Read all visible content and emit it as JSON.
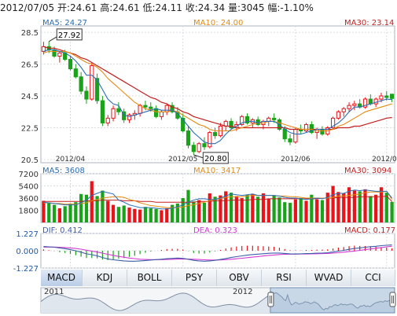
{
  "header": {
    "date": "2012/07/05",
    "open_label": "开:",
    "open": "24.61",
    "high_label": "高:",
    "high": "24.61",
    "low_label": "低:",
    "low": "24.11",
    "close_label": "收:",
    "close": "24.34",
    "volume_label": "量:",
    "volume": "3045",
    "change_label": "幅:",
    "change": "-1.10%"
  },
  "colors": {
    "up": "#e8141a",
    "down": "#1aa31a",
    "ma5": "#2a6db5",
    "ma10": "#e38a10",
    "ma30": "#c41e1e",
    "dif": "#3c5ea8",
    "dea": "#d23ad2",
    "grid": "#d9dde3"
  },
  "chart_data": [
    {
      "type": "candlestick",
      "name": "price",
      "legend": {
        "ma5": "MA5: 24.27",
        "ma10": "MA10: 24.00",
        "ma30": "MA30: 23.14"
      },
      "y_ticks": [
        "28.5",
        "26.5",
        "24.5",
        "22.5",
        "20.5"
      ],
      "ylim": [
        20.3,
        28.9
      ],
      "x_ticks": [
        "2012/04",
        "2012/05",
        "2012/06",
        "2012/07"
      ],
      "annotations": {
        "max": "27.92",
        "min": "20.80"
      },
      "candles": [
        [
          27.3,
          27.9,
          27.1,
          27.6
        ],
        [
          27.6,
          27.92,
          27.2,
          27.4
        ],
        [
          27.4,
          27.6,
          26.9,
          27.0
        ],
        [
          27.0,
          27.3,
          26.6,
          27.2
        ],
        [
          27.2,
          27.4,
          26.7,
          26.8
        ],
        [
          26.8,
          27.0,
          26.1,
          26.2
        ],
        [
          26.2,
          26.5,
          25.6,
          25.7
        ],
        [
          25.7,
          26.0,
          24.6,
          24.8
        ],
        [
          24.8,
          25.1,
          24.0,
          24.3
        ],
        [
          24.3,
          26.6,
          24.2,
          26.4
        ],
        [
          25.6,
          25.9,
          24.0,
          24.2
        ],
        [
          24.2,
          24.5,
          22.6,
          22.8
        ],
        [
          22.8,
          23.3,
          22.6,
          23.1
        ],
        [
          23.1,
          23.9,
          22.9,
          23.7
        ],
        [
          23.7,
          24.1,
          23.3,
          23.5
        ],
        [
          23.5,
          23.7,
          22.8,
          23.0
        ],
        [
          23.0,
          23.4,
          22.8,
          23.3
        ],
        [
          23.3,
          23.6,
          23.0,
          23.4
        ],
        [
          23.4,
          24.0,
          23.2,
          23.9
        ],
        [
          23.9,
          24.2,
          23.6,
          23.8
        ],
        [
          23.8,
          24.1,
          23.5,
          23.7
        ],
        [
          23.7,
          23.9,
          23.1,
          23.2
        ],
        [
          23.2,
          23.6,
          23.0,
          23.5
        ],
        [
          23.5,
          24.0,
          23.3,
          23.9
        ],
        [
          23.9,
          24.1,
          23.4,
          23.5
        ],
        [
          23.5,
          23.8,
          23.0,
          23.1
        ],
        [
          23.1,
          23.4,
          22.2,
          22.3
        ],
        [
          22.3,
          22.6,
          21.2,
          21.4
        ],
        [
          21.4,
          21.6,
          20.8,
          21.0
        ],
        [
          21.0,
          21.6,
          20.9,
          21.5
        ],
        [
          21.5,
          21.9,
          21.1,
          21.3
        ],
        [
          21.3,
          22.3,
          21.2,
          22.2
        ],
        [
          22.2,
          22.5,
          21.8,
          22.0
        ],
        [
          22.0,
          22.8,
          21.9,
          22.6
        ],
        [
          22.6,
          23.0,
          22.3,
          22.9
        ],
        [
          22.9,
          23.1,
          22.4,
          22.5
        ],
        [
          22.5,
          22.9,
          22.3,
          22.7
        ],
        [
          22.7,
          23.3,
          22.6,
          23.2
        ],
        [
          23.2,
          23.4,
          22.7,
          22.8
        ],
        [
          22.8,
          23.1,
          22.5,
          23.0
        ],
        [
          23.0,
          23.2,
          22.6,
          22.7
        ],
        [
          22.7,
          23.0,
          22.4,
          22.9
        ],
        [
          22.9,
          23.2,
          22.6,
          23.1
        ],
        [
          23.1,
          23.4,
          22.8,
          23.0
        ],
        [
          23.0,
          23.1,
          22.3,
          22.4
        ],
        [
          22.4,
          22.6,
          21.6,
          21.8
        ],
        [
          21.8,
          22.1,
          21.4,
          21.6
        ],
        [
          21.6,
          22.5,
          21.5,
          22.4
        ],
        [
          22.4,
          22.7,
          22.1,
          22.3
        ],
        [
          22.3,
          22.8,
          22.2,
          22.7
        ],
        [
          22.7,
          22.9,
          22.1,
          22.2
        ],
        [
          22.2,
          22.5,
          21.8,
          22.4
        ],
        [
          22.4,
          22.6,
          22.0,
          22.1
        ],
        [
          22.1,
          22.6,
          22.0,
          22.5
        ],
        [
          22.5,
          23.2,
          22.4,
          23.1
        ],
        [
          23.1,
          23.6,
          23.0,
          23.5
        ],
        [
          23.5,
          23.8,
          23.2,
          23.7
        ],
        [
          23.7,
          24.1,
          23.5,
          23.9
        ],
        [
          23.9,
          24.2,
          23.6,
          24.0
        ],
        [
          24.0,
          24.3,
          23.7,
          23.8
        ],
        [
          23.8,
          24.4,
          23.7,
          24.3
        ],
        [
          24.3,
          24.6,
          23.9,
          24.0
        ],
        [
          24.0,
          24.4,
          23.8,
          24.3
        ],
        [
          24.3,
          24.7,
          24.1,
          24.5
        ],
        [
          24.5,
          24.8,
          24.2,
          24.4
        ],
        [
          24.61,
          24.61,
          24.11,
          24.34
        ]
      ],
      "ma5": [
        27.3,
        27.4,
        27.4,
        27.3,
        27.2,
        27.0,
        26.7,
        26.3,
        25.8,
        25.8,
        25.5,
        24.9,
        24.3,
        24.0,
        23.9,
        23.3,
        23.2,
        23.3,
        23.4,
        23.5,
        23.6,
        23.7,
        23.6,
        23.6,
        23.6,
        23.4,
        23.0,
        22.6,
        22.2,
        21.9,
        21.6,
        21.5,
        21.5,
        21.7,
        22.1,
        22.4,
        22.6,
        22.8,
        22.9,
        22.9,
        22.8,
        22.9,
        22.9,
        22.9,
        22.7,
        22.4,
        22.2,
        22.1,
        22.1,
        22.2,
        22.3,
        22.4,
        22.4,
        22.4,
        22.6,
        22.8,
        23.1,
        23.5,
        23.8,
        23.8,
        23.9,
        24.0,
        24.1,
        24.2,
        24.3,
        24.27
      ],
      "ma10": [
        27.2,
        27.3,
        27.3,
        27.3,
        27.3,
        27.2,
        27.0,
        26.8,
        26.6,
        26.5,
        26.3,
        26.0,
        25.6,
        25.3,
        25.0,
        24.7,
        24.4,
        24.1,
        23.9,
        23.7,
        23.6,
        23.5,
        23.5,
        23.5,
        23.6,
        23.5,
        23.3,
        23.1,
        22.9,
        22.7,
        22.6,
        22.4,
        22.3,
        22.3,
        22.3,
        22.3,
        22.4,
        22.5,
        22.6,
        22.7,
        22.8,
        22.8,
        22.9,
        22.9,
        22.8,
        22.7,
        22.6,
        22.5,
        22.4,
        22.4,
        22.4,
        22.3,
        22.3,
        22.3,
        22.4,
        22.6,
        22.7,
        22.9,
        23.1,
        23.3,
        23.5,
        23.6,
        23.7,
        23.8,
        23.9,
        24.0
      ],
      "ma30": [
        27.6,
        27.5,
        27.5,
        27.4,
        27.3,
        27.2,
        27.1,
        26.9,
        26.8,
        26.6,
        26.4,
        26.2,
        26.0,
        25.8,
        25.6,
        25.4,
        25.2,
        25.0,
        24.8,
        24.6,
        24.4,
        24.3,
        24.1,
        24.0,
        23.8,
        23.7,
        23.5,
        23.4,
        23.2,
        23.1,
        23.0,
        22.9,
        22.8,
        22.7,
        22.6,
        22.6,
        22.5,
        22.5,
        22.5,
        22.5,
        22.5,
        22.5,
        22.5,
        22.5,
        22.5,
        22.5,
        22.4,
        22.4,
        22.4,
        22.4,
        22.4,
        22.4,
        22.4,
        22.4,
        22.4,
        22.5,
        22.5,
        22.5,
        22.6,
        22.6,
        22.7,
        22.8,
        22.9,
        23.0,
        23.1,
        23.14
      ]
    },
    {
      "type": "bar",
      "name": "volume",
      "legend": {
        "ma5": "MA5: 3608",
        "ma10": "MA10: 3417",
        "ma30": "MA30: 3094"
      },
      "y_ticks": [
        "7200",
        "5400",
        "3600",
        "1800"
      ],
      "ylim": [
        0,
        7200
      ],
      "values": [
        3200,
        2900,
        2600,
        2100,
        2400,
        2800,
        3000,
        4200,
        4100,
        6100,
        3900,
        4700,
        3200,
        2600,
        2300,
        2500,
        2200,
        2000,
        1900,
        2300,
        2100,
        2000,
        1800,
        2100,
        2600,
        2800,
        3600,
        4800,
        3100,
        3300,
        2900,
        4300,
        3800,
        4000,
        4600,
        4400,
        3900,
        3600,
        4100,
        4200,
        3800,
        4300,
        3500,
        4000,
        3700,
        3000,
        2900,
        3400,
        3600,
        3200,
        4100,
        3400,
        3300,
        4400,
        5400,
        4500,
        4300,
        5200,
        4700,
        4600,
        4900,
        3900,
        4100,
        5200,
        4400,
        3045
      ],
      "ma5": [
        3000,
        2900,
        2800,
        2700,
        2600,
        2600,
        2600,
        2900,
        3300,
        4000,
        4300,
        4600,
        4400,
        4200,
        3300,
        3000,
        2600,
        2400,
        2200,
        2200,
        2200,
        2100,
        2000,
        2000,
        2100,
        2300,
        2600,
        3000,
        3300,
        3500,
        3500,
        3400,
        3400,
        3600,
        3900,
        4200,
        4100,
        4000,
        4100,
        4200,
        4000,
        4000,
        4000,
        4000,
        3900,
        3700,
        3600,
        3600,
        3500,
        3400,
        3500,
        3600,
        3500,
        3700,
        4100,
        4300,
        4300,
        4600,
        4800,
        4700,
        4800,
        4700,
        4600,
        4600,
        4600,
        3608
      ],
      "ma10": [
        2900,
        2900,
        2800,
        2800,
        2700,
        2700,
        2700,
        2800,
        2900,
        3200,
        3400,
        3600,
        3700,
        3800,
        3800,
        3700,
        3400,
        3200,
        2900,
        2700,
        2500,
        2400,
        2300,
        2200,
        2200,
        2200,
        2300,
        2500,
        2600,
        2800,
        3000,
        3200,
        3400,
        3500,
        3700,
        3800,
        3800,
        3800,
        3900,
        4000,
        4000,
        4000,
        4000,
        4000,
        3900,
        3900,
        3800,
        3800,
        3700,
        3600,
        3600,
        3600,
        3600,
        3600,
        3700,
        3900,
        3900,
        4000,
        4100,
        4200,
        4400,
        4500,
        4500,
        4500,
        4600,
        3417
      ],
      "ma30": [
        3100,
        3100,
        3100,
        3100,
        3100,
        3100,
        3100,
        3100,
        3200,
        3200,
        3200,
        3300,
        3300,
        3300,
        3300,
        3200,
        3200,
        3200,
        3100,
        3100,
        3100,
        3000,
        3000,
        3000,
        3000,
        3000,
        3000,
        3000,
        3000,
        3100,
        3100,
        3100,
        3200,
        3200,
        3200,
        3300,
        3300,
        3300,
        3300,
        3400,
        3400,
        3400,
        3500,
        3500,
        3500,
        3500,
        3500,
        3500,
        3500,
        3500,
        3500,
        3500,
        3600,
        3600,
        3600,
        3700,
        3700,
        3700,
        3700,
        3800,
        3800,
        3800,
        3800,
        3800,
        3900,
        3094
      ]
    },
    {
      "type": "line",
      "name": "macd",
      "legend": {
        "dif": "DIF: 0.412",
        "dea": "DEA: 0.323",
        "macd": "MACD: 0.177"
      },
      "y_ticks": [
        "1.227",
        "0.000",
        "-1.227"
      ],
      "ylim": [
        -1.227,
        1.227
      ],
      "dif": [
        0.3,
        0.28,
        0.25,
        0.2,
        0.15,
        0.08,
        0.0,
        -0.1,
        -0.22,
        -0.28,
        -0.36,
        -0.48,
        -0.58,
        -0.64,
        -0.68,
        -0.72,
        -0.74,
        -0.74,
        -0.72,
        -0.69,
        -0.66,
        -0.63,
        -0.6,
        -0.56,
        -0.54,
        -0.52,
        -0.54,
        -0.6,
        -0.68,
        -0.72,
        -0.74,
        -0.72,
        -0.68,
        -0.62,
        -0.55,
        -0.48,
        -0.42,
        -0.36,
        -0.31,
        -0.27,
        -0.24,
        -0.21,
        -0.18,
        -0.16,
        -0.16,
        -0.19,
        -0.22,
        -0.23,
        -0.22,
        -0.2,
        -0.19,
        -0.17,
        -0.16,
        -0.14,
        -0.09,
        -0.03,
        0.03,
        0.1,
        0.16,
        0.2,
        0.25,
        0.29,
        0.32,
        0.36,
        0.39,
        0.412
      ],
      "dea": [
        0.25,
        0.26,
        0.26,
        0.25,
        0.23,
        0.2,
        0.16,
        0.11,
        0.04,
        -0.02,
        -0.09,
        -0.17,
        -0.25,
        -0.33,
        -0.4,
        -0.46,
        -0.52,
        -0.56,
        -0.6,
        -0.62,
        -0.63,
        -0.63,
        -0.63,
        -0.62,
        -0.61,
        -0.59,
        -0.58,
        -0.59,
        -0.6,
        -0.62,
        -0.64,
        -0.66,
        -0.66,
        -0.65,
        -0.63,
        -0.6,
        -0.57,
        -0.53,
        -0.49,
        -0.45,
        -0.41,
        -0.37,
        -0.33,
        -0.3,
        -0.27,
        -0.25,
        -0.24,
        -0.24,
        -0.23,
        -0.23,
        -0.22,
        -0.21,
        -0.2,
        -0.19,
        -0.17,
        -0.14,
        -0.1,
        -0.06,
        -0.02,
        0.03,
        0.08,
        0.13,
        0.18,
        0.23,
        0.28,
        0.323
      ],
      "macd": [
        0.1,
        0.04,
        -0.02,
        -0.1,
        -0.16,
        -0.24,
        -0.32,
        -0.42,
        -0.52,
        -0.52,
        -0.54,
        -0.62,
        -0.66,
        -0.62,
        -0.56,
        -0.52,
        -0.44,
        -0.36,
        -0.24,
        -0.14,
        -0.06,
        0.0,
        0.06,
        0.12,
        0.14,
        0.14,
        0.08,
        -0.02,
        -0.16,
        -0.2,
        -0.2,
        -0.12,
        -0.04,
        0.06,
        0.16,
        0.24,
        0.3,
        0.34,
        0.36,
        0.36,
        0.34,
        0.32,
        0.3,
        0.28,
        0.22,
        0.12,
        0.04,
        0.02,
        0.02,
        0.06,
        0.06,
        0.08,
        0.08,
        0.1,
        0.16,
        0.22,
        0.26,
        0.32,
        0.36,
        0.34,
        0.34,
        0.32,
        0.28,
        0.26,
        0.22,
        0.177
      ]
    }
  ],
  "tabs": [
    "MACD",
    "KDJ",
    "BOLL",
    "PSY",
    "OBV",
    "RSI",
    "WVAD",
    "CCI"
  ],
  "navigator": {
    "labels": [
      "2011",
      "2012"
    ]
  }
}
